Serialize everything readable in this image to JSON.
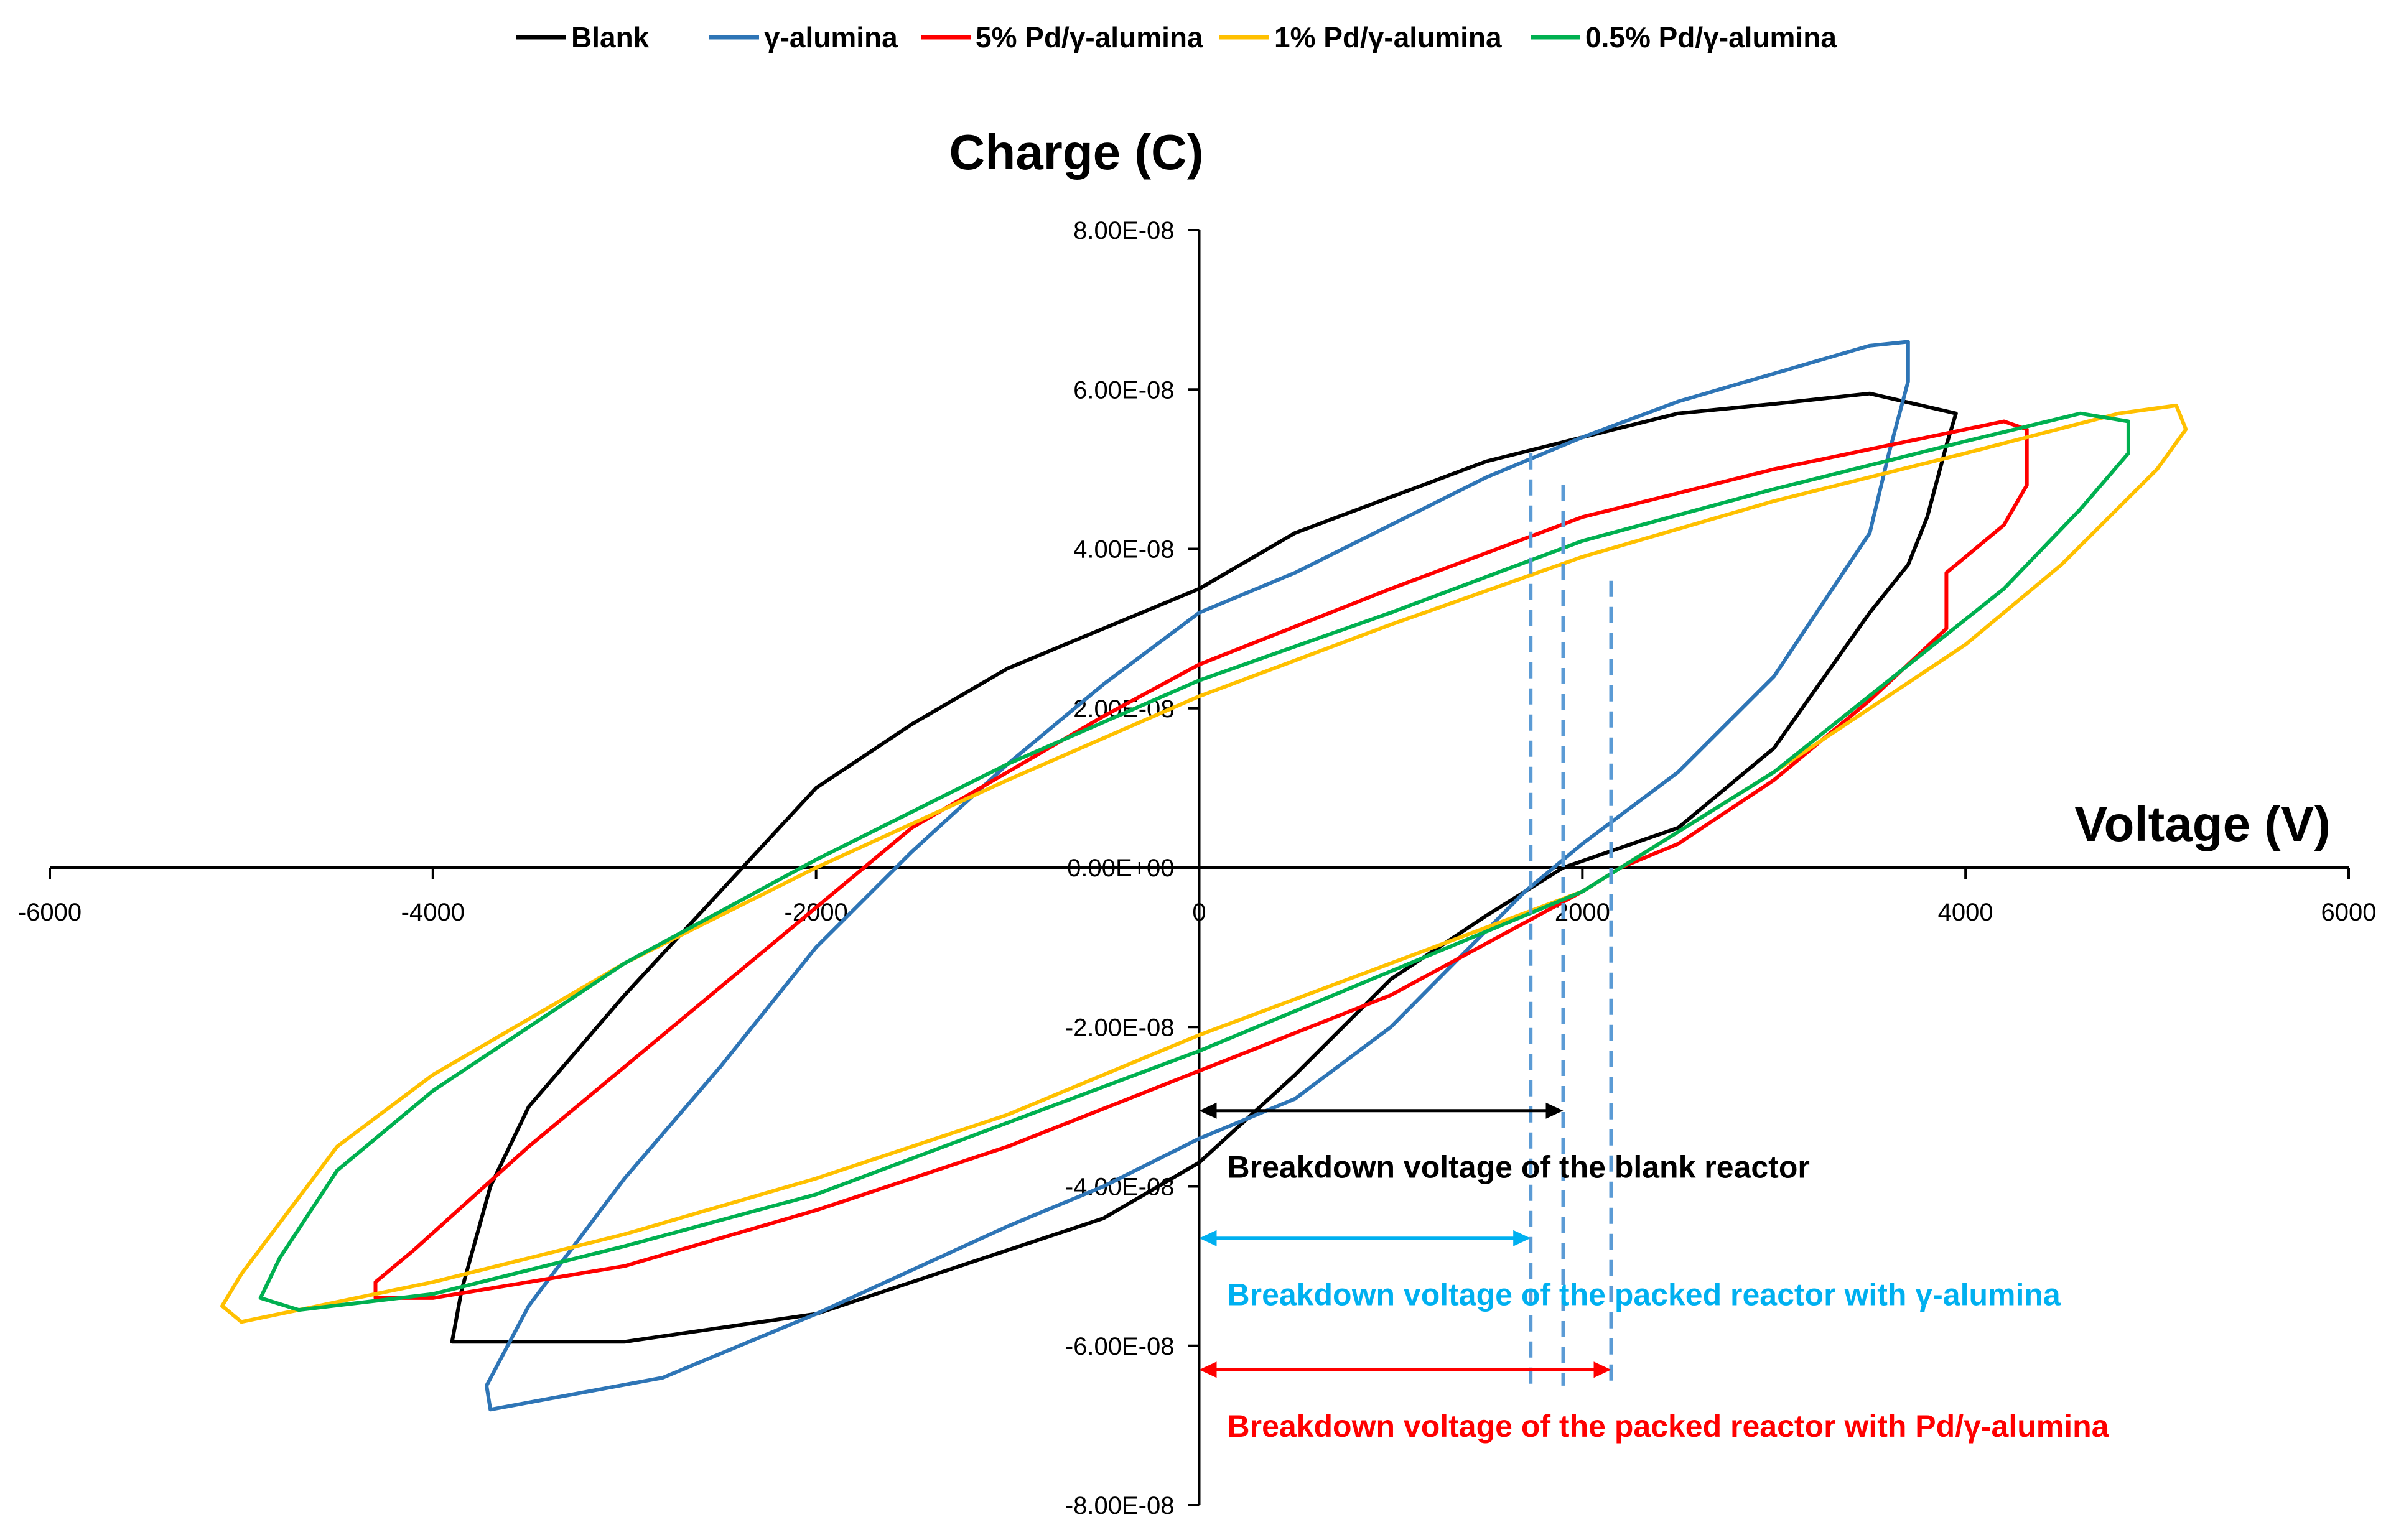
{
  "chart_data": {
    "type": "line",
    "title": "",
    "xlabel": "Voltage (V)",
    "ylabel": "Charge (C)",
    "xlim": [
      -6000,
      6000
    ],
    "ylim": [
      -8e-08,
      8e-08
    ],
    "grid": false,
    "legend_position": "top",
    "x_ticks": [
      {
        "value": -6000,
        "label": "-6000"
      },
      {
        "value": -4000,
        "label": "-4000"
      },
      {
        "value": -2000,
        "label": "-2000"
      },
      {
        "value": 0,
        "label": "0"
      },
      {
        "value": 2000,
        "label": "2000"
      },
      {
        "value": 4000,
        "label": "4000"
      },
      {
        "value": 6000,
        "label": "6000"
      }
    ],
    "y_ticks": [
      {
        "value": 8e-08,
        "label": "8.00E-08"
      },
      {
        "value": 6e-08,
        "label": "6.00E-08"
      },
      {
        "value": 4e-08,
        "label": "4.00E-08"
      },
      {
        "value": 2e-08,
        "label": "2.00E-08"
      },
      {
        "value": 0,
        "label": "0.00E+00"
      },
      {
        "value": -2e-08,
        "label": "-2.00E-08"
      },
      {
        "value": -4e-08,
        "label": "-4.00E-08"
      },
      {
        "value": -6e-08,
        "label": "-6.00E-08"
      },
      {
        "value": -8e-08,
        "label": "-8.00E-08"
      }
    ],
    "series": [
      {
        "name": "Blank",
        "color": "#000000",
        "x": [
          0,
          500,
          1000,
          1500,
          2000,
          2500,
          3000,
          3500,
          3950,
          3900,
          3800,
          3700,
          3500,
          3000,
          2500,
          1900,
          1500,
          1000,
          500,
          0,
          -500,
          -1000,
          -2000,
          -3000,
          -3900,
          -3850,
          -3700,
          -3500,
          -3000,
          -2500,
          -2000,
          -1500,
          -1000,
          -500,
          0
        ],
        "y": [
          3.5e-08,
          4.2e-08,
          4.65e-08,
          5.1e-08,
          5.4e-08,
          5.7e-08,
          5.82e-08,
          5.95e-08,
          5.7e-08,
          5.3e-08,
          4.4e-08,
          3.8e-08,
          3.2e-08,
          1.5e-08,
          5e-09,
          0.0,
          -6e-09,
          -1.4e-08,
          -2.6e-08,
          -3.7e-08,
          -4.4e-08,
          -4.8e-08,
          -5.6e-08,
          -5.95e-08,
          -5.95e-08,
          -5.3e-08,
          -4e-08,
          -3e-08,
          -1.6e-08,
          -3e-09,
          1e-08,
          1.8e-08,
          2.5e-08,
          3e-08,
          3.5e-08
        ]
      },
      {
        "name": "γ-alumina",
        "color": "#2E75B6",
        "x": [
          0,
          500,
          1000,
          1500,
          2000,
          2500,
          3000,
          3500,
          3700,
          3700,
          3600,
          3500,
          3000,
          2500,
          2000,
          1700,
          1000,
          500,
          0,
          -500,
          -1000,
          -2000,
          -2800,
          -3700,
          -3720,
          -3500,
          -3000,
          -2500,
          -2000,
          -1500,
          -1000,
          -500,
          0
        ],
        "y": [
          3.2e-08,
          3.7e-08,
          4.3e-08,
          4.9e-08,
          5.4e-08,
          5.85e-08,
          6.2e-08,
          6.55e-08,
          6.6e-08,
          6.1e-08,
          5.2e-08,
          4.2e-08,
          2.4e-08,
          1.2e-08,
          3e-09,
          -3e-09,
          -2e-08,
          -2.9e-08,
          -3.4e-08,
          -4e-08,
          -4.5e-08,
          -5.6e-08,
          -6.4e-08,
          -6.8e-08,
          -6.5e-08,
          -5.5e-08,
          -3.9e-08,
          -2.5e-08,
          -1e-08,
          2e-09,
          1.3e-08,
          2.3e-08,
          3.2e-08
        ]
      },
      {
        "name": "5% Pd/γ-alumina",
        "color": "#FF0000",
        "x": [
          0,
          1000,
          2000,
          3000,
          4000,
          4200,
          4320,
          4320,
          4200,
          3900,
          3900,
          3500,
          3000,
          2500,
          2200,
          2000,
          1000,
          0,
          -1000,
          -2000,
          -3000,
          -4000,
          -4300,
          -4300,
          -4100,
          -3500,
          -3000,
          -2500,
          -2000,
          -1500,
          -1000,
          -500,
          0
        ],
        "y": [
          2.55e-08,
          3.5e-08,
          4.4e-08,
          5e-08,
          5.5e-08,
          5.6e-08,
          5.5e-08,
          4.8e-08,
          4.3e-08,
          3.7e-08,
          3e-08,
          2.1e-08,
          1.1e-08,
          3e-09,
          0.0,
          -3e-09,
          -1.6e-08,
          -2.55e-08,
          -3.5e-08,
          -4.3e-08,
          -5e-08,
          -5.4e-08,
          -5.4e-08,
          -5.2e-08,
          -4.8e-08,
          -3.5e-08,
          -2.5e-08,
          -1.5e-08,
          -5e-09,
          5e-09,
          1.2e-08,
          1.9e-08,
          2.55e-08
        ]
      },
      {
        "name": "1% Pd/γ-alumina",
        "color": "#FFC000",
        "x": [
          0,
          1000,
          2000,
          3000,
          4000,
          4800,
          5100,
          5150,
          5000,
          4500,
          4000,
          3000,
          2200,
          2000,
          1000,
          0,
          -1000,
          -2000,
          -3000,
          -4000,
          -5000,
          -5100,
          -5000,
          -4500,
          -4000,
          -3000,
          -2000,
          -1000,
          0
        ],
        "y": [
          2.15e-08,
          3.05e-08,
          3.9e-08,
          4.6e-08,
          5.2e-08,
          5.7e-08,
          5.8e-08,
          5.5e-08,
          5e-08,
          3.8e-08,
          2.8e-08,
          1.2e-08,
          0.0,
          -3e-09,
          -1.2e-08,
          -2.1e-08,
          -3.1e-08,
          -3.9e-08,
          -4.6e-08,
          -5.2e-08,
          -5.7e-08,
          -5.5e-08,
          -5.1e-08,
          -3.5e-08,
          -2.6e-08,
          -1.2e-08,
          0.0,
          1.1e-08,
          2.15e-08
        ]
      },
      {
        "name": "0.5% Pd/γ-alumina",
        "color": "#00B050",
        "x": [
          0,
          1000,
          2000,
          3000,
          4000,
          4600,
          4850,
          4850,
          4600,
          4200,
          3000,
          2200,
          2000,
          1000,
          0,
          -1000,
          -2000,
          -3000,
          -4000,
          -4700,
          -4900,
          -4800,
          -4500,
          -4000,
          -3000,
          -2000,
          -1000,
          0
        ],
        "y": [
          2.35e-08,
          3.2e-08,
          4.1e-08,
          4.75e-08,
          5.35e-08,
          5.7e-08,
          5.6e-08,
          5.2e-08,
          4.5e-08,
          3.5e-08,
          1.2e-08,
          0.0,
          -3e-09,
          -1.3e-08,
          -2.3e-08,
          -3.2e-08,
          -4.1e-08,
          -4.75e-08,
          -5.35e-08,
          -5.55e-08,
          -5.4e-08,
          -4.9e-08,
          -3.8e-08,
          -2.8e-08,
          -1.2e-08,
          1e-09,
          1.3e-08,
          2.35e-08
        ]
      }
    ],
    "breakdown_lines": [
      {
        "voltage": 1730,
        "q_top": 5.2e-08,
        "color": "#5B9BD5"
      },
      {
        "voltage": 1900,
        "q_top": 4.8e-08,
        "color": "#5B9BD5"
      },
      {
        "voltage": 2150,
        "q_top": 3.6e-08,
        "color": "#5B9BD5"
      }
    ],
    "annotations": [
      {
        "text": "Breakdown voltage of the blank reactor",
        "color": "#000000",
        "x_start": 0,
        "x_end": 1900,
        "arrow_q": -3.05e-08,
        "label_q": -3.75e-08
      },
      {
        "text": "Breakdown voltage of the packed reactor with γ-alumina",
        "color": "#00B0F0",
        "x_start": 0,
        "x_end": 1730,
        "arrow_q": -4.65e-08,
        "label_q": -5.35e-08
      },
      {
        "text": "Breakdown voltage of the packed reactor with Pd/γ-alumina",
        "color": "#FF0000",
        "x_start": 0,
        "x_end": 2150,
        "arrow_q": -6.3e-08,
        "label_q": -7e-08
      }
    ]
  }
}
